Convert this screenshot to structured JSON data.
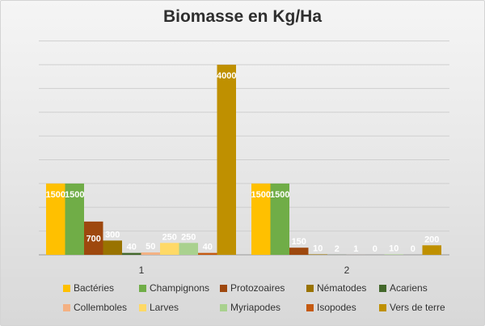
{
  "chart_data": {
    "type": "bar",
    "title": "Biomasse en Kg/Ha",
    "xlabel": "",
    "ylabel": "",
    "ylim": [
      0,
      4000
    ],
    "grid": true,
    "legend_position": "bottom",
    "categories": [
      "1",
      "2"
    ],
    "series": [
      {
        "name": "Bactéries",
        "color": "#ffc000",
        "values": [
          1500,
          1500
        ]
      },
      {
        "name": "Champignons",
        "color": "#70ad47",
        "values": [
          1500,
          1500
        ]
      },
      {
        "name": "Protozoaires",
        "color": "#9e480e",
        "values": [
          700,
          150
        ]
      },
      {
        "name": "Nématodes",
        "color": "#997300",
        "values": [
          300,
          10
        ]
      },
      {
        "name": "Acariens",
        "color": "#43682b",
        "values": [
          40,
          2
        ]
      },
      {
        "name": "Collemboles",
        "color": "#f4b183",
        "values": [
          50,
          1
        ]
      },
      {
        "name": "Larves",
        "color": "#ffd966",
        "values": [
          250,
          0
        ]
      },
      {
        "name": "Myriapodes",
        "color": "#a9d18e",
        "values": [
          250,
          10
        ]
      },
      {
        "name": "Isopodes",
        "color": "#c55a11",
        "values": [
          40,
          0
        ]
      },
      {
        "name": "Vers de terre",
        "color": "#bf9000",
        "values": [
          4000,
          200
        ]
      }
    ]
  }
}
